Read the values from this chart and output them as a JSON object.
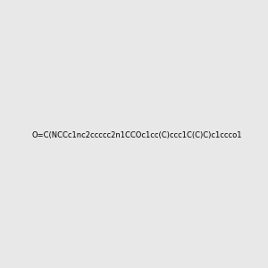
{
  "smiles": "O=C(NCCc1nc2ccccc2n1CCOc1cc(C)ccc1C(C)C)c1ccco1",
  "image_size": 300,
  "background_color": "#e8e8e8"
}
